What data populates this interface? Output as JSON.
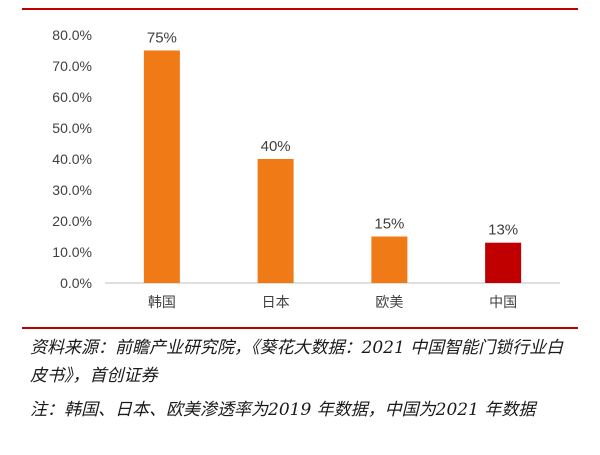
{
  "colors": {
    "rule": "#c00000",
    "bar_default": "#f07a16",
    "bar_highlight": "#c00000",
    "axis": "#bfbfbf",
    "text": "#404040"
  },
  "chart_data": {
    "type": "bar",
    "categories": [
      "韩国",
      "日本",
      "欧美",
      "中国"
    ],
    "values": [
      75,
      40,
      15,
      13
    ],
    "value_labels": [
      "75%",
      "40%",
      "15%",
      "13%"
    ],
    "bar_colors": [
      "#f07a16",
      "#f07a16",
      "#f07a16",
      "#c00000"
    ],
    "ylim": [
      0,
      80
    ],
    "yticks": [
      "0.0%",
      "10.0%",
      "20.0%",
      "30.0%",
      "40.0%",
      "50.0%",
      "60.0%",
      "70.0%",
      "80.0%"
    ],
    "grid": false
  },
  "footer": {
    "source": "资料来源：前瞻产业研究院，《葵花大数据：2021 中国智能门锁行业白皮书》，首创证券",
    "note": "注：韩国、日本、欧美渗透率为2019 年数据，中国为2021 年数据"
  }
}
